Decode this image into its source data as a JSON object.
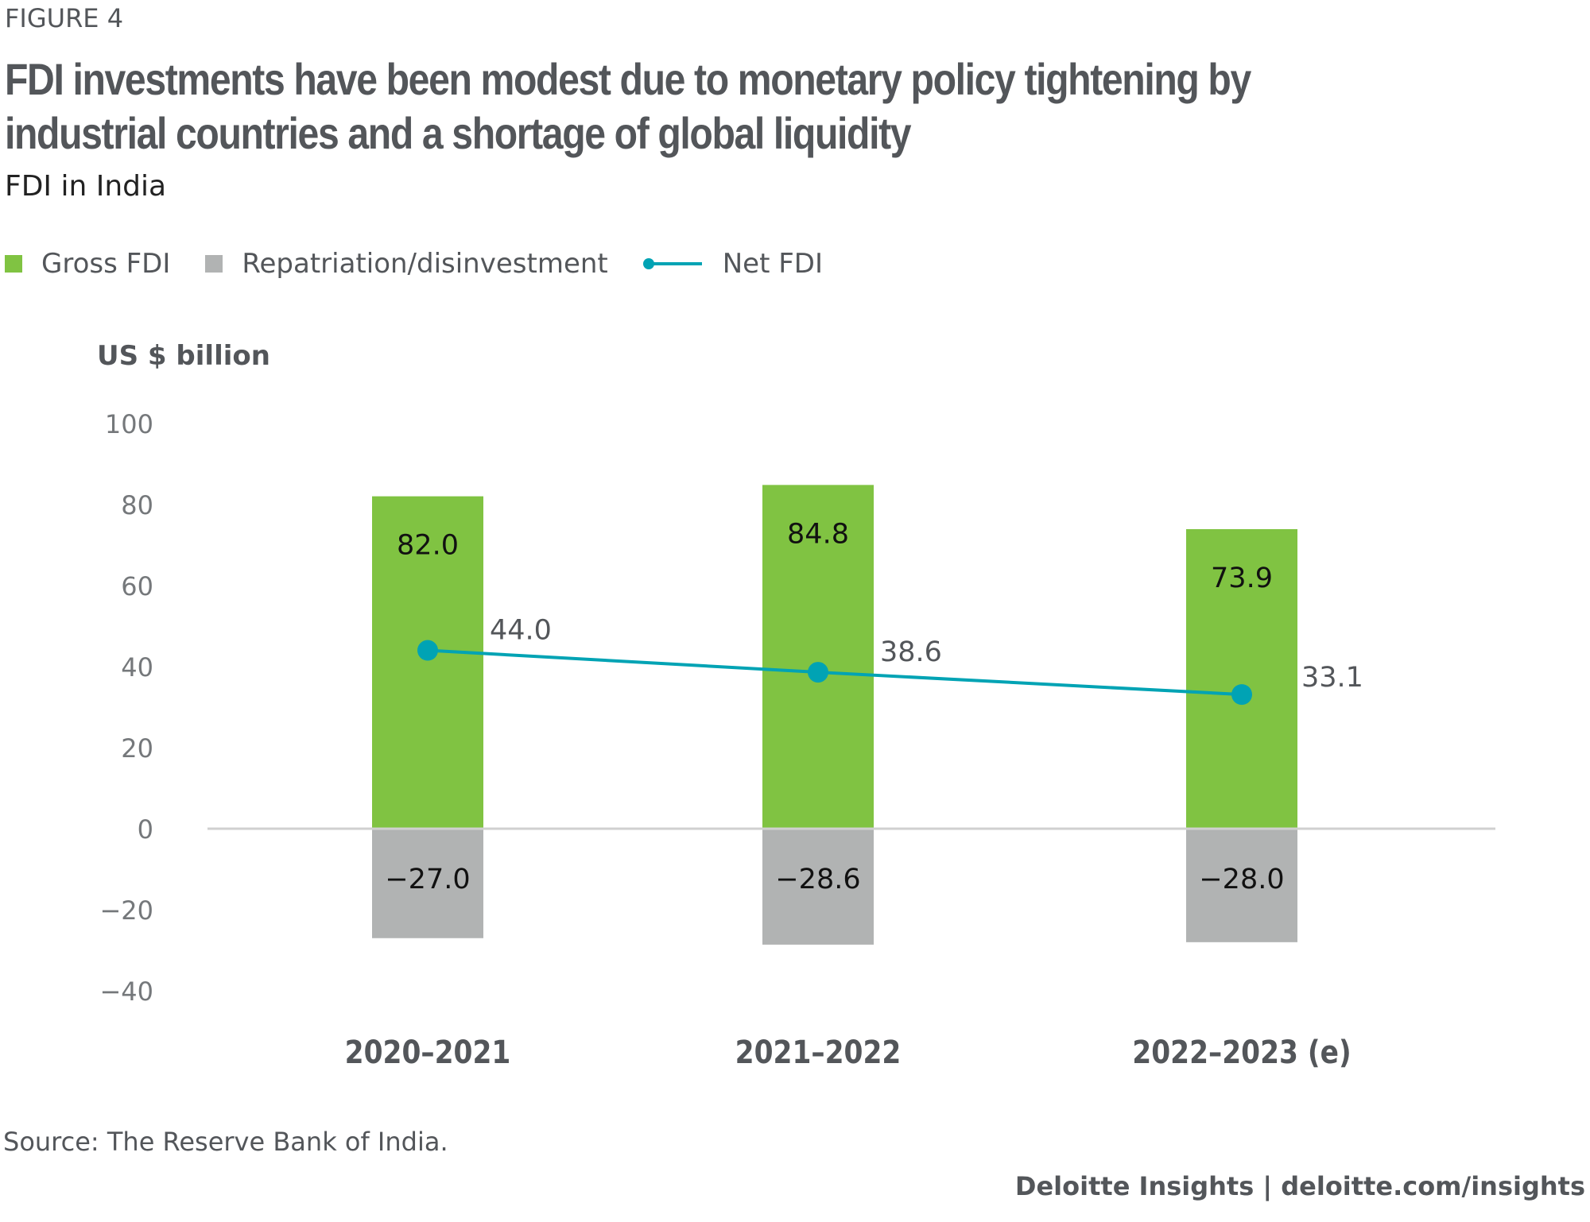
{
  "figure_label": "FIGURE 4",
  "title_line1": "FDI investments have been modest due to monetary policy tightening by",
  "title_line2": "industrial countries and a shortage of global liquidity",
  "subtitle": "FDI in India",
  "source": "Source: The Reserve Bank of India.",
  "footer": "Deloitte Insights | deloitte.com/insights",
  "colors": {
    "gross": "#80c342",
    "repatriation": "#b1b3b3",
    "net": "#00a3b4",
    "text": "#53565a"
  },
  "chart_data": {
    "type": "bar",
    "ylabel": "US $ billion",
    "ylim": [
      -40,
      100
    ],
    "yticks": [
      "100",
      "80",
      "60",
      "40",
      "20",
      "0",
      "−20",
      "−40"
    ],
    "ytick_values": [
      100,
      80,
      60,
      40,
      20,
      0,
      -20,
      -40
    ],
    "grid": false,
    "legend": "top-left",
    "categories": [
      "2020–2021",
      "2021–2022",
      "2022–2023 (e)"
    ],
    "series": [
      {
        "name": "Gross FDI",
        "type": "bar",
        "values": [
          82.0,
          84.8,
          73.9
        ],
        "labels": [
          "82.0",
          "84.8",
          "73.9"
        ]
      },
      {
        "name": "Repatriation/disinvestment",
        "type": "bar",
        "values": [
          -27.0,
          -28.6,
          -28.0
        ],
        "labels": [
          "−27.0",
          "−28.6",
          "−28.0"
        ]
      },
      {
        "name": "Net FDI",
        "type": "line",
        "values": [
          44.0,
          38.6,
          33.1
        ],
        "labels": [
          "44.0",
          "38.6",
          "33.1"
        ]
      }
    ]
  }
}
